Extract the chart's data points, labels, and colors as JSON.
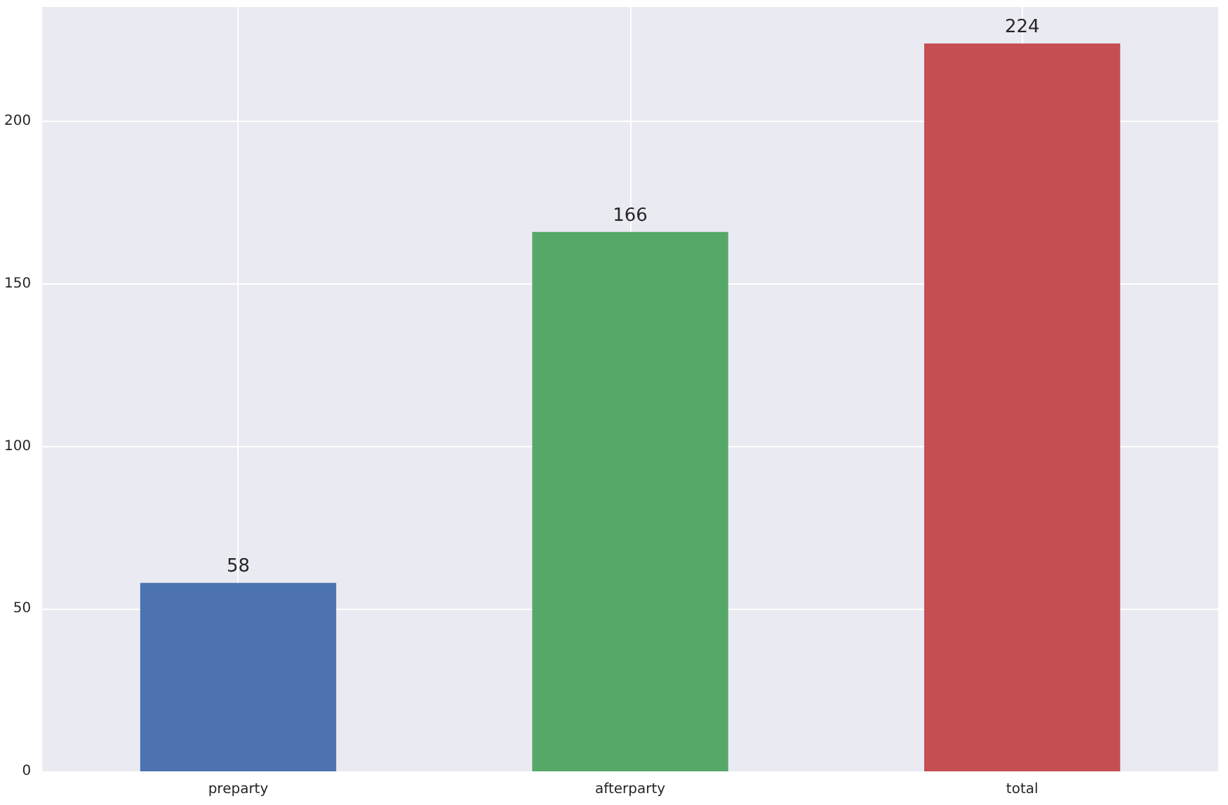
{
  "chart_data": {
    "type": "bar",
    "categories": [
      "preparty",
      "afterparty",
      "total"
    ],
    "values": [
      58,
      166,
      224
    ],
    "colors": [
      "#4c72b0",
      "#55a868",
      "#c44e52"
    ],
    "ylim": [
      0,
      235.2
    ],
    "yticks": [
      0,
      50,
      100,
      150,
      200
    ],
    "grid": true,
    "data_labels": true
  }
}
